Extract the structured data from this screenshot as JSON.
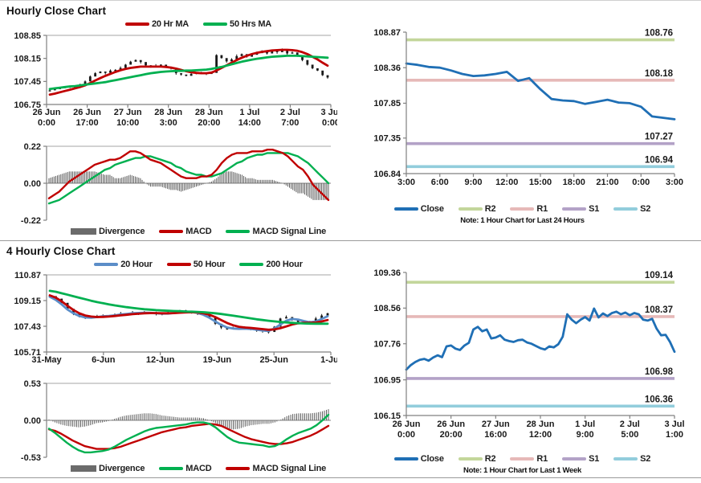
{
  "page": {
    "section1_title": "Hourly Close Chart",
    "section2_title": "4 Hourly Close Chart"
  },
  "colors": {
    "close_blue": "#1F6FB5",
    "ma_blue": "#5B8DC8",
    "ma_red": "#C00000",
    "ma_green": "#00B050",
    "r2_olive": "#C3D69B",
    "r1_pink": "#E6B9B8",
    "s1_purple": "#B3A2C7",
    "s2_aqua": "#92CDDC",
    "divergence_gray": "#5a5a5a",
    "axis_gray": "#808080",
    "candle_black": "#1a1a1a"
  },
  "chart_data": [
    {
      "id": "hourly-price",
      "type": "price",
      "ylim": [
        106.75,
        108.85
      ],
      "yticks": [
        "108.85",
        "108.15",
        "107.45",
        "106.75"
      ],
      "xticks": [
        [
          "26 Jun",
          "0:00"
        ],
        [
          "26 Jun",
          "17:00"
        ],
        [
          "27 Jun",
          "10:00"
        ],
        [
          "28 Jun",
          "3:00"
        ],
        [
          "28 Jun",
          "20:00"
        ],
        [
          "1 Jul",
          "14:00"
        ],
        [
          "2 Jul",
          "7:00"
        ],
        [
          "3 Jul",
          "0:00"
        ]
      ],
      "legend": [
        {
          "label": "20 Hr MA",
          "color": "#C00000"
        },
        {
          "label": "50 Hrs MA",
          "color": "#00B050"
        }
      ],
      "candles_close": [
        107.18,
        107.22,
        107.25,
        107.28,
        107.3,
        107.27,
        107.34,
        107.45,
        107.6,
        107.7,
        107.75,
        107.71,
        107.78,
        107.8,
        107.86,
        107.96,
        108.05,
        108.1,
        108.04,
        107.94,
        107.9,
        107.93,
        107.96,
        107.9,
        107.84,
        107.7,
        107.66,
        107.62,
        107.68,
        107.71,
        107.72,
        107.68,
        107.71,
        108.25,
        108.16,
        108.06,
        108.12,
        108.22,
        108.28,
        108.2,
        108.26,
        108.31,
        108.36,
        108.3,
        108.38,
        108.34,
        108.41,
        108.3,
        108.33,
        108.24,
        108.1,
        107.96,
        107.85,
        107.78,
        107.64,
        107.57
      ],
      "series": [
        {
          "name": "20 Hr MA",
          "color": "#C00000",
          "values": [
            107.05,
            107.08,
            107.12,
            107.16,
            107.2,
            107.24,
            107.28,
            107.33,
            107.4,
            107.48,
            107.55,
            107.62,
            107.68,
            107.74,
            107.79,
            107.83,
            107.86,
            107.88,
            107.9,
            107.9,
            107.9,
            107.9,
            107.9,
            107.89,
            107.87,
            107.84,
            107.8,
            107.76,
            107.73,
            107.71,
            107.7,
            107.7,
            107.72,
            107.78,
            107.86,
            107.94,
            108.02,
            108.1,
            108.17,
            108.23,
            108.28,
            108.32,
            108.35,
            108.37,
            108.39,
            108.4,
            108.41,
            108.41,
            108.4,
            108.38,
            108.34,
            108.28,
            108.2,
            108.12,
            108.02,
            107.93
          ]
        },
        {
          "name": "50 Hrs MA",
          "color": "#00B050",
          "values": [
            107.22,
            107.24,
            107.26,
            107.28,
            107.3,
            107.31,
            107.33,
            107.35,
            107.37,
            107.39,
            107.41,
            107.43,
            107.46,
            107.49,
            107.52,
            107.55,
            107.58,
            107.61,
            107.64,
            107.67,
            107.7,
            107.72,
            107.74,
            107.75,
            107.76,
            107.77,
            107.77,
            107.78,
            107.78,
            107.79,
            107.8,
            107.81,
            107.83,
            107.86,
            107.89,
            107.93,
            107.97,
            108.01,
            108.05,
            108.08,
            108.11,
            108.14,
            108.16,
            108.18,
            108.2,
            108.21,
            108.22,
            108.23,
            108.23,
            108.23,
            108.22,
            108.21,
            108.2,
            108.19,
            108.18,
            108.17
          ]
        }
      ]
    },
    {
      "id": "hourly-macd",
      "type": "macd",
      "ylim": [
        -0.22,
        0.22
      ],
      "yticks": [
        "0.22",
        "0.00",
        "-0.22"
      ],
      "legend": [
        {
          "label": "Divergence",
          "color": "#6b6b6b",
          "swatch": "bar"
        },
        {
          "label": "MACD",
          "color": "#C00000"
        },
        {
          "label": "MACD Signal Line",
          "color": "#00B050"
        }
      ],
      "macd": {
        "color": "#C00000",
        "values": [
          -0.09,
          -0.07,
          -0.05,
          -0.02,
          0.01,
          0.03,
          0.05,
          0.07,
          0.09,
          0.11,
          0.12,
          0.13,
          0.14,
          0.14,
          0.15,
          0.17,
          0.19,
          0.19,
          0.18,
          0.16,
          0.14,
          0.13,
          0.12,
          0.1,
          0.08,
          0.06,
          0.04,
          0.03,
          0.03,
          0.03,
          0.04,
          0.04,
          0.05,
          0.08,
          0.12,
          0.15,
          0.17,
          0.18,
          0.18,
          0.18,
          0.19,
          0.19,
          0.19,
          0.2,
          0.2,
          0.19,
          0.18,
          0.16,
          0.13,
          0.1,
          0.08,
          0.04,
          -0.01,
          -0.04,
          -0.07,
          -0.1
        ]
      },
      "signal": {
        "color": "#00B050",
        "values": [
          -0.12,
          -0.11,
          -0.1,
          -0.08,
          -0.06,
          -0.04,
          -0.02,
          0.0,
          0.02,
          0.04,
          0.06,
          0.08,
          0.09,
          0.11,
          0.12,
          0.13,
          0.14,
          0.15,
          0.15,
          0.16,
          0.16,
          0.15,
          0.14,
          0.13,
          0.12,
          0.1,
          0.09,
          0.07,
          0.06,
          0.05,
          0.05,
          0.04,
          0.04,
          0.05,
          0.06,
          0.08,
          0.1,
          0.12,
          0.13,
          0.15,
          0.16,
          0.17,
          0.17,
          0.18,
          0.18,
          0.18,
          0.18,
          0.18,
          0.17,
          0.16,
          0.14,
          0.12,
          0.09,
          0.06,
          0.03,
          0.0
        ]
      }
    },
    {
      "id": "hourly-sr",
      "type": "sr_line",
      "ylim": [
        106.84,
        108.87
      ],
      "yticks": [
        "108.87",
        "108.36",
        "107.85",
        "107.35",
        "106.84"
      ],
      "xticks": [
        "3:00",
        "6:00",
        "9:00",
        "12:00",
        "15:00",
        "18:00",
        "21:00",
        "0:00",
        "3:00"
      ],
      "close": {
        "name": "Close",
        "color": "#1F6FB5",
        "values": [
          108.42,
          108.4,
          108.37,
          108.36,
          108.32,
          108.27,
          108.24,
          108.25,
          108.27,
          108.3,
          108.17,
          108.21,
          108.05,
          107.91,
          107.89,
          107.88,
          107.84,
          107.87,
          107.9,
          107.86,
          107.85,
          107.8,
          107.66,
          107.64,
          107.62
        ]
      },
      "levels": [
        {
          "name": "R2",
          "value": 108.76,
          "label": "108.76",
          "color": "#C3D69B"
        },
        {
          "name": "R1",
          "value": 108.18,
          "label": "108.18",
          "color": "#E6B9B8"
        },
        {
          "name": "S1",
          "value": 107.27,
          "label": "107.27",
          "color": "#B3A2C7"
        },
        {
          "name": "S2",
          "value": 106.94,
          "label": "106.94",
          "color": "#92CDDC"
        }
      ],
      "legend": [
        {
          "label": "Close",
          "color": "#1F6FB5"
        },
        {
          "label": "R2",
          "color": "#C3D69B"
        },
        {
          "label": "R1",
          "color": "#E6B9B8"
        },
        {
          "label": "S1",
          "color": "#B3A2C7"
        },
        {
          "label": "S2",
          "color": "#92CDDC"
        }
      ],
      "note": "Note: 1 Hour Chart for Last 24 Hours"
    },
    {
      "id": "fourhour-price",
      "type": "price",
      "ylim": [
        105.71,
        110.87
      ],
      "yticks": [
        "110.87",
        "109.15",
        "107.43",
        "105.71"
      ],
      "xticks": [
        "31-May",
        "6-Jun",
        "12-Jun",
        "19-Jun",
        "25-Jun",
        "1-Jul"
      ],
      "legend": [
        {
          "label": "20 Hour",
          "color": "#5B8DC8"
        },
        {
          "label": "50 Hour",
          "color": "#C00000"
        },
        {
          "label": "200 Hour",
          "color": "#00B050"
        }
      ],
      "candles_close": [
        109.45,
        109.28,
        109.0,
        108.6,
        108.3,
        108.1,
        108.0,
        108.06,
        108.12,
        108.15,
        108.1,
        108.2,
        108.3,
        108.24,
        108.34,
        108.28,
        108.38,
        108.33,
        108.28,
        108.24,
        108.3,
        108.36,
        108.5,
        108.44,
        108.34,
        108.3,
        108.24,
        108.0,
        107.6,
        107.35,
        107.22,
        107.32,
        107.26,
        107.36,
        107.2,
        107.16,
        107.1,
        107.05,
        107.4,
        107.95,
        108.05,
        107.86,
        107.72,
        107.68,
        107.72,
        107.95,
        108.15,
        108.3
      ],
      "series": [
        {
          "name": "20 Hour",
          "color": "#5B8DC8",
          "values": [
            109.4,
            109.2,
            108.9,
            108.55,
            108.3,
            108.12,
            108.02,
            108.0,
            108.05,
            108.1,
            108.12,
            108.16,
            108.22,
            108.26,
            108.3,
            108.32,
            108.34,
            108.33,
            108.3,
            108.28,
            108.28,
            108.32,
            108.4,
            108.42,
            108.38,
            108.32,
            108.2,
            108.0,
            107.75,
            107.52,
            107.35,
            107.28,
            107.26,
            107.27,
            107.25,
            107.2,
            107.15,
            107.12,
            107.28,
            107.55,
            107.8,
            107.92,
            107.88,
            107.78,
            107.7,
            107.75,
            107.92,
            108.1
          ]
        },
        {
          "name": "50 Hour",
          "color": "#C00000",
          "values": [
            109.5,
            109.35,
            109.1,
            108.8,
            108.52,
            108.3,
            108.15,
            108.08,
            108.05,
            108.06,
            108.08,
            108.12,
            108.16,
            108.2,
            108.24,
            108.27,
            108.3,
            108.31,
            108.31,
            108.3,
            108.3,
            108.31,
            108.34,
            108.36,
            108.37,
            108.35,
            108.3,
            108.2,
            108.05,
            107.85,
            107.65,
            107.5,
            107.4,
            107.35,
            107.32,
            107.28,
            107.24,
            107.2,
            107.22,
            107.3,
            107.42,
            107.55,
            107.63,
            107.66,
            107.66,
            107.68,
            107.75,
            107.85
          ]
        },
        {
          "name": "200 Hour",
          "color": "#00B050",
          "values": [
            109.8,
            109.74,
            109.64,
            109.54,
            109.44,
            109.34,
            109.24,
            109.14,
            109.05,
            108.97,
            108.9,
            108.83,
            108.77,
            108.71,
            108.66,
            108.61,
            108.57,
            108.54,
            108.51,
            108.49,
            108.47,
            108.45,
            108.44,
            108.42,
            108.41,
            108.39,
            108.37,
            108.34,
            108.3,
            108.25,
            108.2,
            108.14,
            108.08,
            108.02,
            107.96,
            107.9,
            107.85,
            107.8,
            107.76,
            107.72,
            107.69,
            107.66,
            107.64,
            107.62,
            107.61,
            107.6,
            107.6,
            107.6
          ]
        }
      ]
    },
    {
      "id": "fourhour-macd",
      "type": "macd",
      "ylim": [
        -0.53,
        0.53
      ],
      "yticks": [
        "0.53",
        "0.00",
        "-0.53"
      ],
      "legend": [
        {
          "label": "Divergence",
          "color": "#6b6b6b",
          "swatch": "bar"
        },
        {
          "label": "MACD",
          "color": "#00B050"
        },
        {
          "label": "MACD Signal Line",
          "color": "#C00000"
        }
      ],
      "macd": {
        "color": "#00B050",
        "values": [
          -0.12,
          -0.18,
          -0.25,
          -0.32,
          -0.38,
          -0.43,
          -0.46,
          -0.46,
          -0.45,
          -0.44,
          -0.42,
          -0.38,
          -0.33,
          -0.28,
          -0.24,
          -0.2,
          -0.16,
          -0.13,
          -0.11,
          -0.1,
          -0.09,
          -0.08,
          -0.07,
          -0.06,
          -0.04,
          -0.03,
          -0.03,
          -0.05,
          -0.1,
          -0.17,
          -0.24,
          -0.29,
          -0.32,
          -0.33,
          -0.34,
          -0.35,
          -0.36,
          -0.38,
          -0.37,
          -0.33,
          -0.27,
          -0.22,
          -0.18,
          -0.15,
          -0.12,
          -0.07,
          0.0,
          0.08
        ]
      },
      "signal": {
        "color": "#C00000",
        "values": [
          -0.13,
          -0.15,
          -0.19,
          -0.24,
          -0.29,
          -0.33,
          -0.37,
          -0.39,
          -0.41,
          -0.41,
          -0.41,
          -0.4,
          -0.38,
          -0.35,
          -0.32,
          -0.29,
          -0.26,
          -0.23,
          -0.2,
          -0.17,
          -0.15,
          -0.13,
          -0.11,
          -0.1,
          -0.08,
          -0.07,
          -0.06,
          -0.05,
          -0.06,
          -0.08,
          -0.12,
          -0.16,
          -0.2,
          -0.24,
          -0.27,
          -0.29,
          -0.31,
          -0.33,
          -0.34,
          -0.34,
          -0.33,
          -0.31,
          -0.28,
          -0.25,
          -0.22,
          -0.18,
          -0.13,
          -0.08
        ]
      }
    },
    {
      "id": "week-sr",
      "type": "sr_line",
      "ylim": [
        106.15,
        109.36
      ],
      "yticks": [
        "109.36",
        "108.56",
        "107.76",
        "106.95",
        "106.15"
      ],
      "xticks": [
        [
          "26 Jun",
          "0:00"
        ],
        [
          "26 Jun",
          "20:00"
        ],
        [
          "27 Jun",
          "16:00"
        ],
        [
          "28 Jun",
          "12:00"
        ],
        [
          "1 Jul",
          "9:00"
        ],
        [
          "2 Jul",
          "5:00"
        ],
        [
          "3 Jul",
          "1:00"
        ]
      ],
      "close": {
        "name": "Close",
        "color": "#1F6FB5",
        "values": [
          107.18,
          107.28,
          107.35,
          107.4,
          107.42,
          107.38,
          107.45,
          107.5,
          107.46,
          107.7,
          107.72,
          107.65,
          107.62,
          107.72,
          107.78,
          108.08,
          108.14,
          108.04,
          108.08,
          107.88,
          107.9,
          107.95,
          107.85,
          107.82,
          107.8,
          107.84,
          107.85,
          107.79,
          107.76,
          107.71,
          107.66,
          107.63,
          107.7,
          107.68,
          107.75,
          107.92,
          108.42,
          108.3,
          108.22,
          108.3,
          108.36,
          108.28,
          108.55,
          108.35,
          108.44,
          108.38,
          108.45,
          108.48,
          108.42,
          108.46,
          108.4,
          108.45,
          108.42,
          108.3,
          108.28,
          108.32,
          108.1,
          107.95,
          107.96,
          107.8,
          107.58
        ]
      },
      "levels": [
        {
          "name": "R2",
          "value": 109.14,
          "label": "109.14",
          "color": "#C3D69B"
        },
        {
          "name": "R1",
          "value": 108.37,
          "label": "108.37",
          "color": "#E6B9B8"
        },
        {
          "name": "S1",
          "value": 106.98,
          "label": "106.98",
          "color": "#B3A2C7"
        },
        {
          "name": "S2",
          "value": 106.36,
          "label": "106.36",
          "color": "#92CDDC"
        }
      ],
      "legend": [
        {
          "label": "Close",
          "color": "#1F6FB5"
        },
        {
          "label": "R2",
          "color": "#C3D69B"
        },
        {
          "label": "R1",
          "color": "#E6B9B8"
        },
        {
          "label": "S1",
          "color": "#B3A2C7"
        },
        {
          "label": "S2",
          "color": "#92CDDC"
        }
      ],
      "note": "Note: 1 Hour Chart for Last 1 Week"
    }
  ]
}
